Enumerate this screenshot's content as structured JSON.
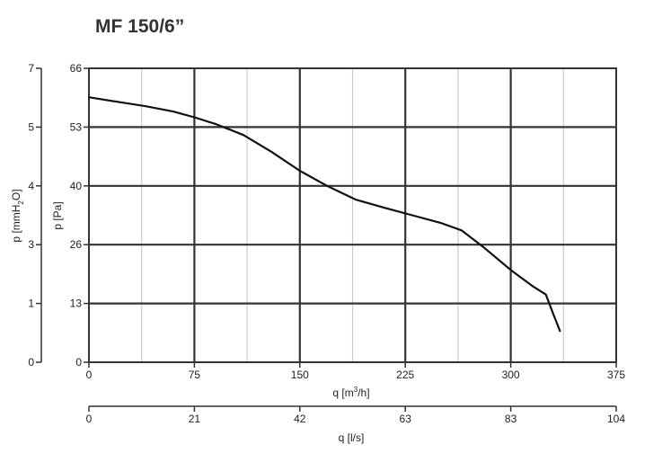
{
  "chart_data": {
    "type": "line",
    "title": "MF 150/6”",
    "x_axis": {
      "label": "q [m³/h]",
      "label_main": "q [m",
      "label_sup": "3",
      "label_tail": "/h]",
      "range": [
        0,
        375
      ],
      "ticks": [
        "0",
        "75",
        "150",
        "225",
        "300",
        "375"
      ]
    },
    "x2_axis": {
      "label": "q [l/s]",
      "range": [
        0,
        104
      ],
      "ticks": [
        "0",
        "21",
        "42",
        "63",
        "83",
        "104"
      ]
    },
    "y_axis": {
      "label": "p [Pa]",
      "range": [
        0,
        66
      ],
      "ticks": [
        "0",
        "13",
        "26",
        "40",
        "53",
        "66"
      ]
    },
    "y2_axis": {
      "label": "p [mmH₂O]",
      "label_main": "p [mmH",
      "label_sub": "2",
      "label_tail": "O]",
      "range": [
        0,
        7
      ],
      "ticks": [
        "0",
        "1",
        "3",
        "4",
        "5",
        "7"
      ]
    },
    "grid": true,
    "series": [
      {
        "x": [
          0,
          20,
          40,
          60,
          75,
          90,
          110,
          130,
          150,
          170,
          190,
          210,
          230,
          250,
          265,
          280,
          300,
          315,
          325,
          330,
          335
        ],
        "y": [
          59.5,
          58.5,
          57.5,
          56.3,
          55.0,
          53.5,
          51.0,
          47.2,
          43.0,
          39.5,
          36.5,
          34.7,
          33.0,
          31.3,
          29.6,
          26.0,
          20.7,
          17.2,
          15.2,
          11.0,
          7.0
        ]
      }
    ]
  }
}
